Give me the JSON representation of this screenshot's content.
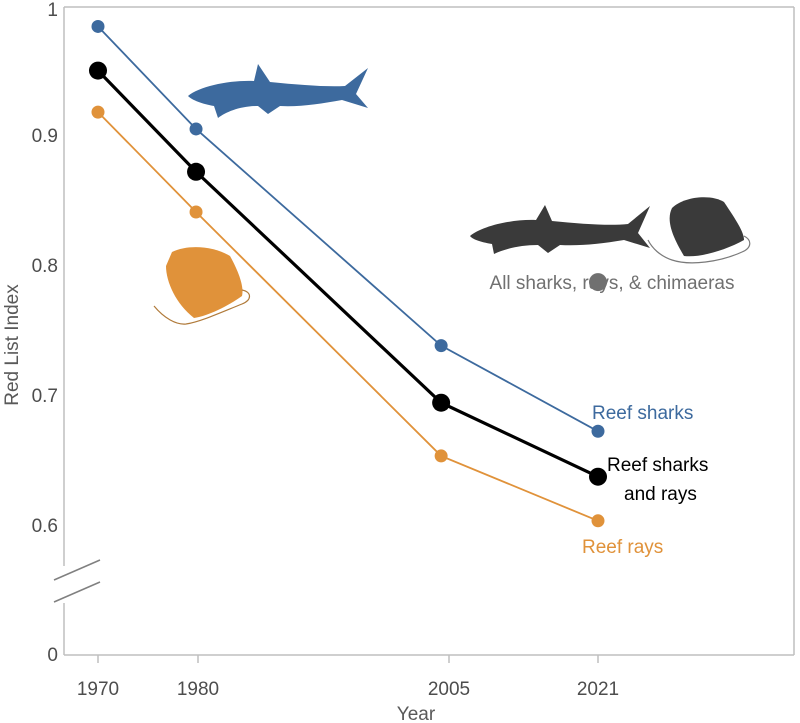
{
  "chart_data": {
    "type": "line",
    "xlabel": "Year",
    "ylabel": "Red List Index",
    "x": [
      1970,
      1980,
      2005,
      2021
    ],
    "x_tick_labels": [
      "1970",
      "1980",
      "2005",
      "2021"
    ],
    "y_tick_labels": [
      "0",
      "0.6",
      "0.7",
      "0.8",
      "0.9",
      "1"
    ],
    "y_ticks": [
      0.6,
      0.7,
      0.8,
      0.9,
      1.0
    ],
    "ylim": [
      0.55,
      1.0
    ],
    "axis_break": true,
    "grid": false,
    "series": [
      {
        "name": "Reef sharks",
        "label": "Reef sharks",
        "values": [
          0.985,
          0.906,
          0.739,
          0.673
        ],
        "color": "#3d6a9e"
      },
      {
        "name": "Reef sharks and rays",
        "label_lines": [
          "Reef sharks",
          "and rays"
        ],
        "values": [
          0.951,
          0.873,
          0.695,
          0.638
        ],
        "color": "#000000"
      },
      {
        "name": "Reef rays",
        "label": "Reef rays",
        "values": [
          0.919,
          0.842,
          0.654,
          0.604
        ],
        "color": "#e0923a"
      }
    ],
    "reference_point": {
      "label": "All sharks, rays, & chimaeras",
      "x": 2021,
      "y": 0.788,
      "color": "#707070"
    },
    "icons": [
      {
        "name": "shark-blue-icon",
        "color": "#3d6a9e"
      },
      {
        "name": "shark-gray-icon",
        "color": "#3a3a3a"
      },
      {
        "name": "ray-gray-icon",
        "color": "#3a3a3a"
      },
      {
        "name": "ray-orange-icon",
        "color": "#e0923a"
      }
    ]
  }
}
